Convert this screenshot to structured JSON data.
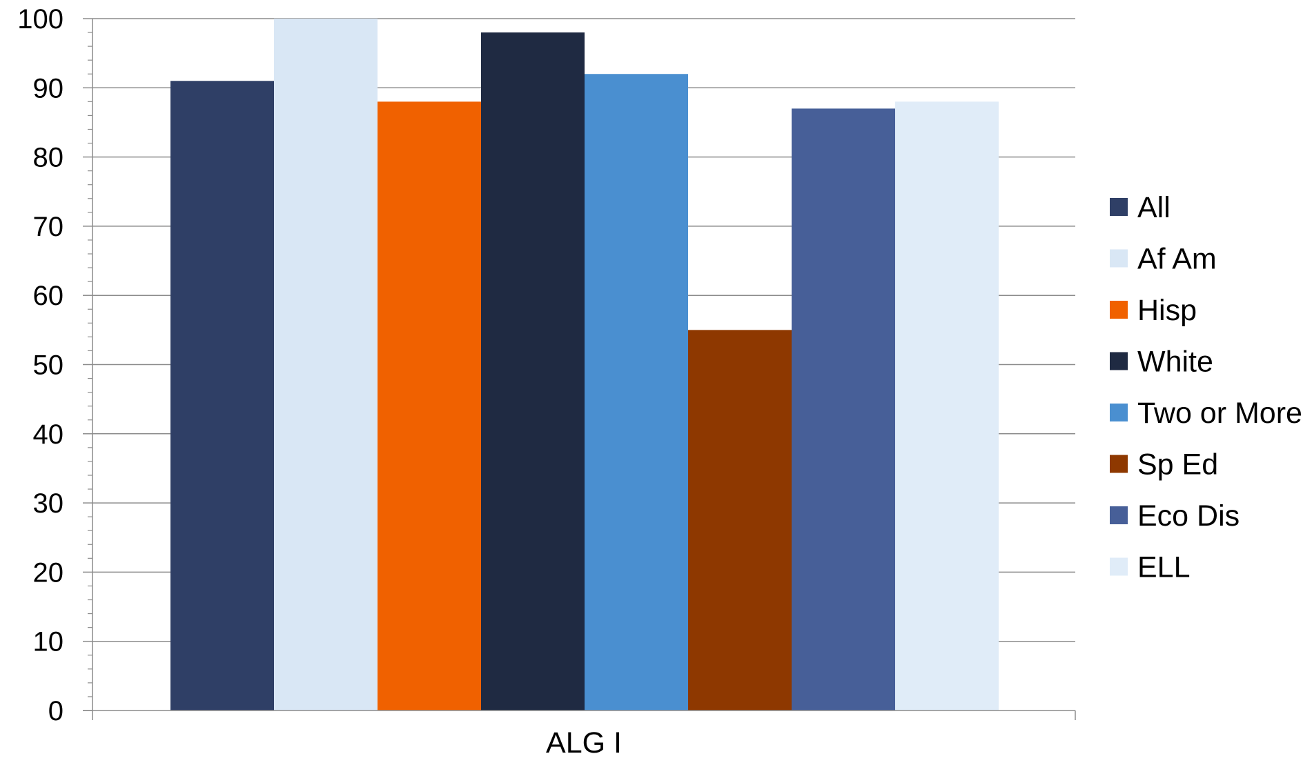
{
  "chart_data": {
    "type": "bar",
    "title": "",
    "xlabel": "",
    "ylabel": "",
    "categories": [
      "ALG I"
    ],
    "ylim": [
      0,
      100
    ],
    "yticks": [
      0,
      10,
      20,
      30,
      40,
      50,
      60,
      70,
      80,
      90,
      100
    ],
    "grid": true,
    "legend_position": "right",
    "series": [
      {
        "name": "All",
        "values": [
          91
        ],
        "color": "#2f3f66"
      },
      {
        "name": "Af Am",
        "values": [
          100
        ],
        "color": "#d9e7f5"
      },
      {
        "name": "Hisp",
        "values": [
          88
        ],
        "color": "#f06100"
      },
      {
        "name": "White",
        "values": [
          98
        ],
        "color": "#1f2a42"
      },
      {
        "name": "Two or More",
        "values": [
          92
        ],
        "color": "#4a8fd0"
      },
      {
        "name": "Sp Ed",
        "values": [
          55
        ],
        "color": "#8e3800"
      },
      {
        "name": "Eco Dis",
        "values": [
          87
        ],
        "color": "#475f98"
      },
      {
        "name": "ELL",
        "values": [
          88
        ],
        "color": "#e0ecf8"
      }
    ]
  }
}
